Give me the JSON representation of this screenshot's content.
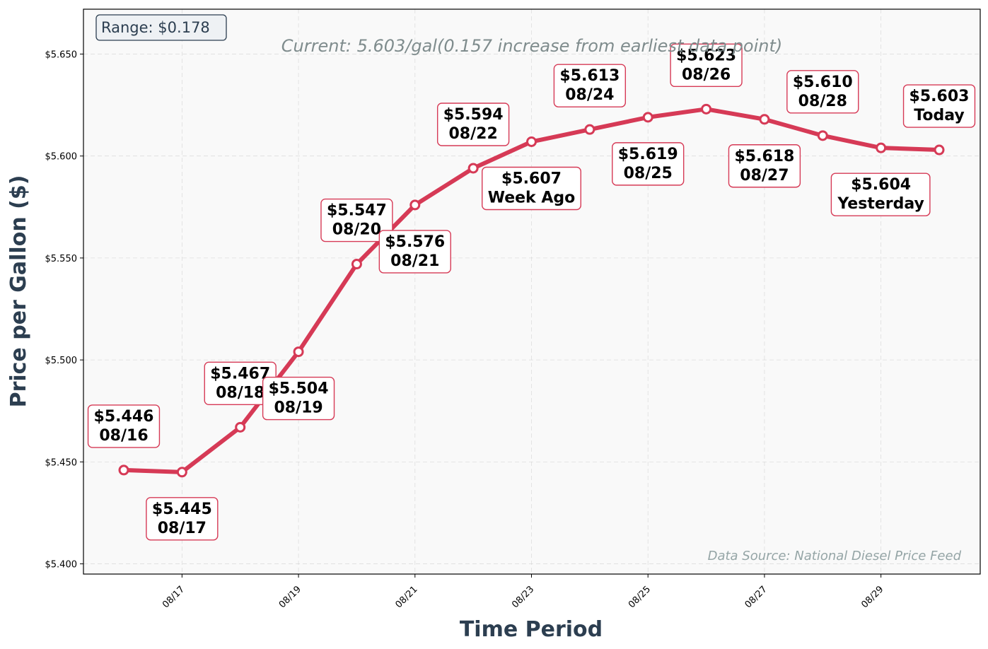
{
  "chart_data": {
    "type": "line",
    "xlabel": "Time Period",
    "ylabel": "Price per Gallon ($)",
    "ylim": [
      5.395,
      5.672
    ],
    "yticks": [
      "$5.400",
      "$5.450",
      "$5.500",
      "$5.550",
      "$5.600",
      "$5.650"
    ],
    "xlim": [
      "08/15",
      "08/30"
    ],
    "xticks": [
      "08/17",
      "08/19",
      "08/21",
      "08/23",
      "08/25",
      "08/27",
      "08/29"
    ],
    "grid": true,
    "series": [
      {
        "color": "#d63a56",
        "points": [
          {
            "x": "08/16",
            "y": 5.446,
            "label": "$5.446\n08/16"
          },
          {
            "x": "08/17",
            "y": 5.445,
            "label": "$5.445\n08/17"
          },
          {
            "x": "08/18",
            "y": 5.467,
            "label": "$5.467\n08/18"
          },
          {
            "x": "08/19",
            "y": 5.504,
            "label": "$5.504\n08/19"
          },
          {
            "x": "08/20",
            "y": 5.547,
            "label": "$5.547\n08/20"
          },
          {
            "x": "08/21",
            "y": 5.576,
            "label": "$5.576\n08/21"
          },
          {
            "x": "08/22",
            "y": 5.594,
            "label": "$5.594\n08/22"
          },
          {
            "x": "08/23",
            "y": 5.607,
            "label": "$5.607\nWeek Ago"
          },
          {
            "x": "08/24",
            "y": 5.613,
            "label": "$5.613\n08/24"
          },
          {
            "x": "08/25",
            "y": 5.619,
            "label": "$5.619\n08/25"
          },
          {
            "x": "08/26",
            "y": 5.623,
            "label": "$5.623\n08/26"
          },
          {
            "x": "08/27",
            "y": 5.618,
            "label": "$5.618\n08/27"
          },
          {
            "x": "08/28",
            "y": 5.61,
            "label": "$5.610\n08/28"
          },
          {
            "x": "08/29",
            "y": 5.604,
            "label": "$5.604\nYesterday"
          },
          {
            "x": "08/30",
            "y": 5.603,
            "label": "$5.603\nToday"
          }
        ]
      }
    ],
    "annotations": {
      "range": "Range: $0.178",
      "current": "Current: 5.603/gal(0.157 increase from earliest data point)",
      "source": "Data Source: National Diesel Price Feed"
    }
  }
}
